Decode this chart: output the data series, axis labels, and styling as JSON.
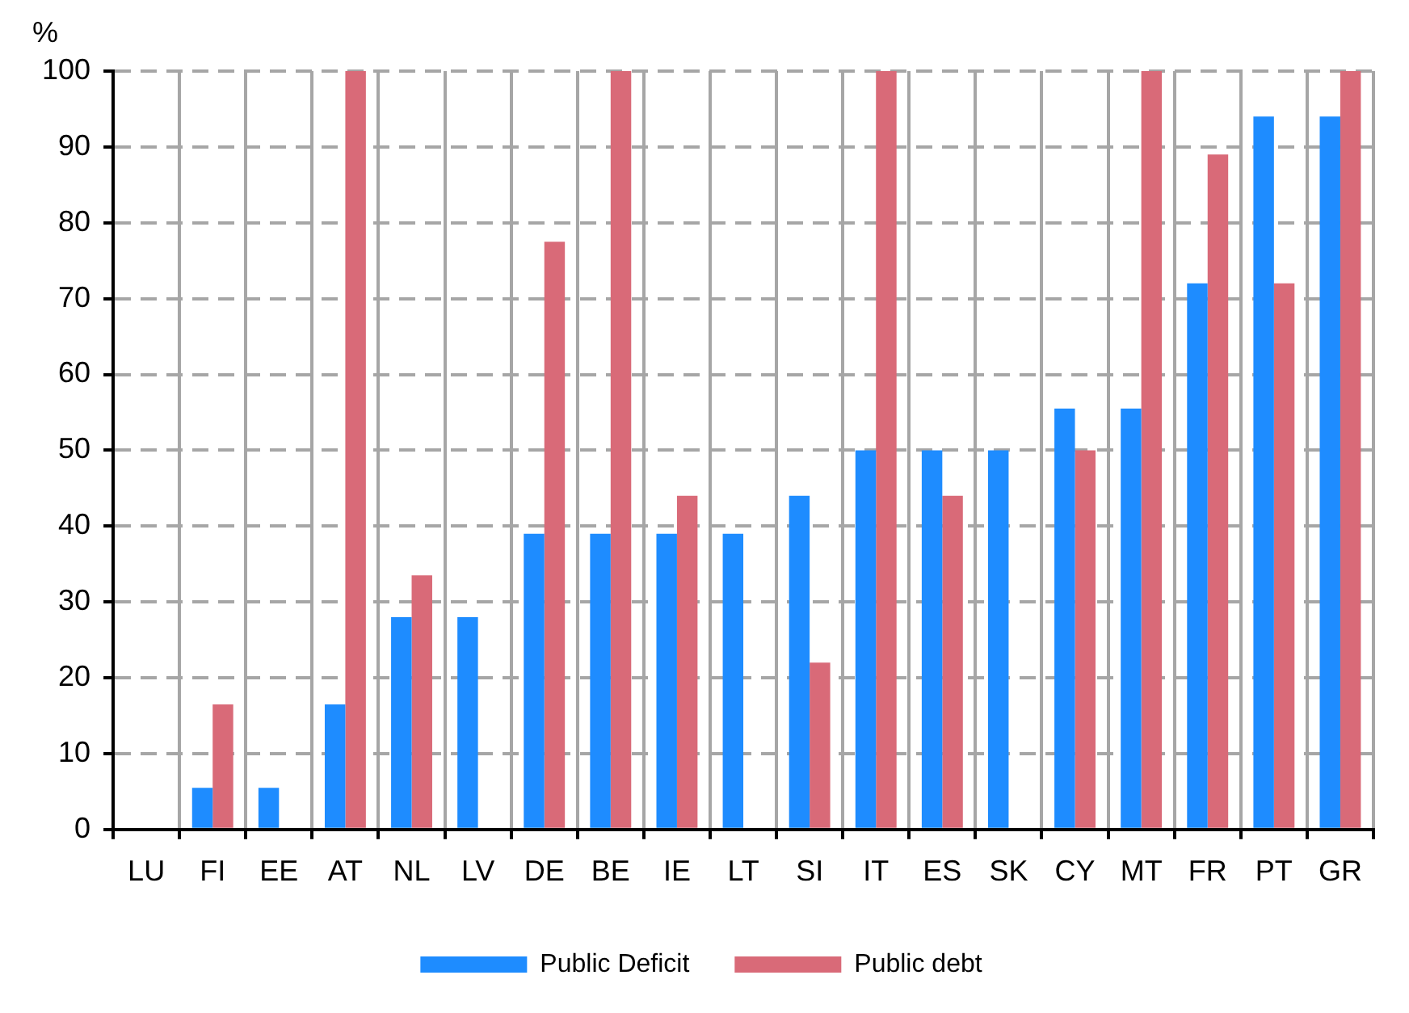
{
  "chart_data": {
    "type": "bar",
    "ylabel": "%",
    "categories": [
      "LU",
      "FI",
      "EE",
      "AT",
      "NL",
      "LV",
      "DE",
      "BE",
      "IE",
      "LT",
      "SI",
      "IT",
      "ES",
      "SK",
      "CY",
      "MT",
      "FR",
      "PT",
      "GR"
    ],
    "series": [
      {
        "name": "Public Deficit",
        "color": "#1e8cff",
        "values": [
          null,
          5.5,
          5.5,
          16.5,
          28,
          28,
          39,
          39,
          39,
          39,
          44,
          50,
          50,
          50,
          55.5,
          55.5,
          72,
          94,
          94
        ]
      },
      {
        "name": "Public debt",
        "color": "#d96a78",
        "values": [
          null,
          16.5,
          null,
          100,
          33.5,
          null,
          77.5,
          100,
          44,
          null,
          22,
          100,
          44,
          null,
          50,
          100,
          89,
          72,
          100
        ]
      }
    ],
    "ylim": [
      0,
      100
    ],
    "yticks": [
      0,
      10,
      20,
      30,
      40,
      50,
      60,
      70,
      80,
      90,
      100
    ],
    "grid": true,
    "legend": "bottom"
  }
}
